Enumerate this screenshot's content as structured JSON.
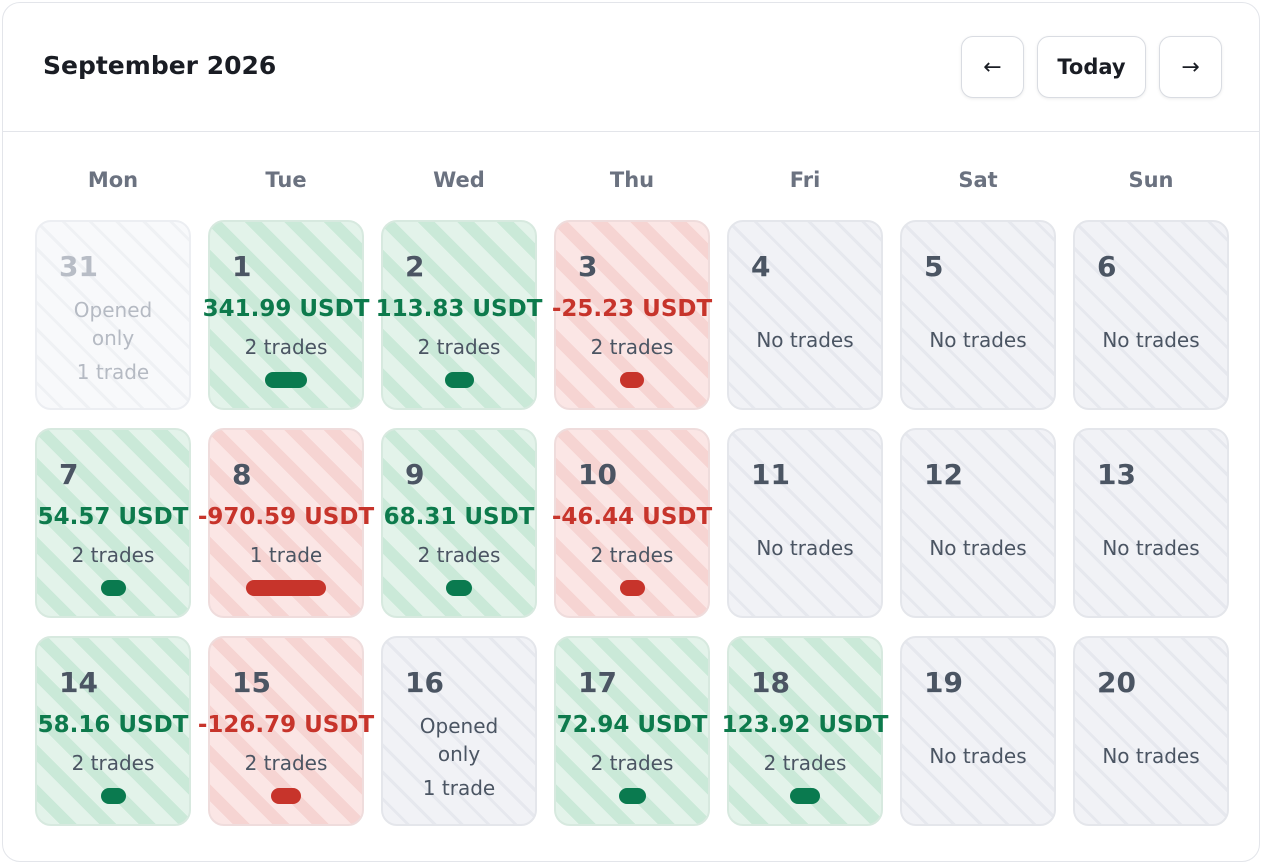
{
  "header": {
    "title": "September 2026",
    "prev_label": "←",
    "today_label": "Today",
    "next_label": "→"
  },
  "weekdays": [
    "Mon",
    "Tue",
    "Wed",
    "Thu",
    "Fri",
    "Sat",
    "Sun"
  ],
  "labels": {
    "no_trades": "No trades",
    "opened_only": "Opened only"
  },
  "colors": {
    "profit": "#0d7a4c",
    "loss": "#c7342b",
    "neutral_bg": "#f1f2f6"
  },
  "days": [
    {
      "num": "31",
      "type": "other",
      "opened": "Opened only",
      "trades": "1 trade"
    },
    {
      "num": "1",
      "type": "profit",
      "pnl": "341.99 USDT",
      "trades": "2 trades",
      "bar_fraction": 0.35
    },
    {
      "num": "2",
      "type": "profit",
      "pnl": "113.83 USDT",
      "trades": "2 trades",
      "bar_fraction": 0.12
    },
    {
      "num": "3",
      "type": "loss",
      "pnl": "-25.23 USDT",
      "trades": "2 trades",
      "bar_fraction": 0.03
    },
    {
      "num": "4",
      "type": "neutral",
      "note": "No trades"
    },
    {
      "num": "5",
      "type": "neutral",
      "note": "No trades"
    },
    {
      "num": "6",
      "type": "neutral",
      "note": "No trades"
    },
    {
      "num": "7",
      "type": "profit",
      "pnl": "54.57 USDT",
      "trades": "2 trades",
      "bar_fraction": 0.06
    },
    {
      "num": "8",
      "type": "loss",
      "pnl": "-970.59 USDT",
      "trades": "1 trade",
      "bar_fraction": 1.0
    },
    {
      "num": "9",
      "type": "profit",
      "pnl": "68.31 USDT",
      "trades": "2 trades",
      "bar_fraction": 0.07
    },
    {
      "num": "10",
      "type": "loss",
      "pnl": "-46.44 USDT",
      "trades": "2 trades",
      "bar_fraction": 0.05
    },
    {
      "num": "11",
      "type": "neutral",
      "note": "No trades"
    },
    {
      "num": "12",
      "type": "neutral",
      "note": "No trades"
    },
    {
      "num": "13",
      "type": "neutral",
      "note": "No trades"
    },
    {
      "num": "14",
      "type": "profit",
      "pnl": "58.16 USDT",
      "trades": "2 trades",
      "bar_fraction": 0.06
    },
    {
      "num": "15",
      "type": "loss",
      "pnl": "-126.79 USDT",
      "trades": "2 trades",
      "bar_fraction": 0.13
    },
    {
      "num": "16",
      "type": "neutral",
      "opened": "Opened only",
      "trades": "1 trade"
    },
    {
      "num": "17",
      "type": "profit",
      "pnl": "72.94 USDT",
      "trades": "2 trades",
      "bar_fraction": 0.08
    },
    {
      "num": "18",
      "type": "profit",
      "pnl": "123.92 USDT",
      "trades": "2 trades",
      "bar_fraction": 0.13
    },
    {
      "num": "19",
      "type": "neutral",
      "note": "No trades"
    },
    {
      "num": "20",
      "type": "neutral",
      "note": "No trades"
    }
  ]
}
